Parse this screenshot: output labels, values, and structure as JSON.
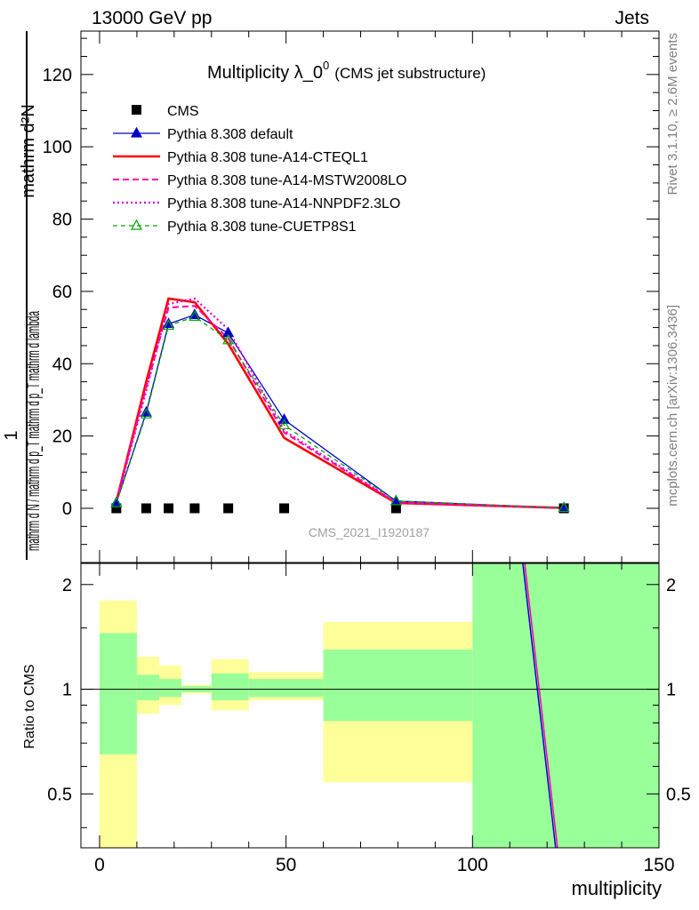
{
  "header": {
    "energy": "13000 GeV pp",
    "category": "Jets"
  },
  "side_labels": {
    "rivet": "Rivet 3.1.10, ≥ 2.6M events",
    "mcplots": "mcplots.cern.ch [arXiv:1306.3436]"
  },
  "chart_data": {
    "type": "line",
    "title": "Multiplicity λ_0",
    "title_superscript": "0",
    "title_note": "(CMS jet substructure)",
    "watermark": "CMS_2021_I1920187",
    "ylabel_main_top": "mathrm d²N",
    "ylabel_main_bottom": "mathrm d N / mathrm d p_T mathrm d p_T mathrm d lambda",
    "ylabel_main_prefix": "1",
    "ylabel_ratio": "Ratio to CMS",
    "xlabel": "multiplicity",
    "xlim": [
      -5,
      150
    ],
    "ylim_main": [
      -15,
      132
    ],
    "ylim_ratio": [
      0.35,
      2.3
    ],
    "x_ticks": [
      0,
      50,
      100,
      150
    ],
    "y_ticks_main": [
      0,
      20,
      40,
      60,
      80,
      100,
      120
    ],
    "y_ticks_ratio": [
      0.5,
      1,
      2
    ],
    "x": [
      4.5,
      12.5,
      18.5,
      25.5,
      34.5,
      49.5,
      79.5,
      124.5
    ],
    "series": [
      {
        "name": "CMS",
        "style": "data",
        "color": "#000000",
        "marker": "square",
        "values": [
          0,
          0,
          0,
          0,
          0,
          0,
          0,
          0
        ]
      },
      {
        "name": "Pythia 8.308 default",
        "color": "#0000cc",
        "dash": "none",
        "width": 1.3,
        "marker": "triangle-filled",
        "values": [
          1.5,
          26.5,
          51.0,
          53.5,
          48.5,
          24.5,
          2.0,
          0.1
        ]
      },
      {
        "name": "Pythia 8.308 tune-A14-CTEQL1",
        "color": "#ff0000",
        "dash": "none",
        "width": 2.6,
        "marker": "none",
        "values": [
          1.8,
          35.0,
          58.0,
          57.0,
          45.5,
          19.5,
          1.5,
          0.1
        ]
      },
      {
        "name": "Pythia 8.308 tune-A14-MSTW2008LO",
        "color": "#ff00aa",
        "dash": "7,4",
        "width": 2.0,
        "marker": "none",
        "values": [
          1.7,
          33.5,
          55.5,
          56.0,
          47.0,
          21.0,
          1.6,
          0.1
        ]
      },
      {
        "name": "Pythia 8.308 tune-A14-NNPDF2.3LO",
        "color": "#dd00dd",
        "dash": "2,3",
        "width": 2.2,
        "marker": "none",
        "values": [
          1.6,
          32.5,
          56.5,
          58.0,
          49.5,
          21.5,
          1.7,
          0.1
        ]
      },
      {
        "name": "Pythia 8.308 tune-CUETP8S1",
        "color": "#00aa00",
        "dash": "5,4",
        "width": 1.3,
        "marker": "triangle-open",
        "values": [
          1.4,
          26.0,
          50.5,
          53.0,
          46.5,
          23.0,
          2.0,
          0.1
        ]
      }
    ],
    "ratio_bands": [
      {
        "x_range": [
          0,
          10
        ],
        "yellow": [
          0.35,
          1.8
        ],
        "green": [
          0.65,
          1.45
        ]
      },
      {
        "x_range": [
          10,
          16
        ],
        "yellow": [
          0.85,
          1.24
        ],
        "green": [
          0.93,
          1.1
        ]
      },
      {
        "x_range": [
          16,
          22
        ],
        "yellow": [
          0.9,
          1.17
        ],
        "green": [
          0.95,
          1.07
        ]
      },
      {
        "x_range": [
          22,
          30
        ],
        "yellow": [
          0.97,
          1.03
        ],
        "green": [
          0.98,
          1.02
        ]
      },
      {
        "x_range": [
          30,
          40
        ],
        "yellow": [
          0.87,
          1.22
        ],
        "green": [
          0.93,
          1.11
        ]
      },
      {
        "x_range": [
          40,
          60
        ],
        "yellow": [
          0.93,
          1.12
        ],
        "green": [
          0.95,
          1.07
        ]
      },
      {
        "x_range": [
          60,
          100
        ],
        "yellow": [
          0.54,
          1.56
        ],
        "green": [
          0.81,
          1.3
        ]
      },
      {
        "x_range": [
          100,
          150
        ],
        "yellow": [
          0.35,
          2.3
        ],
        "green": [
          0.35,
          2.3
        ]
      }
    ],
    "ratio_lines": [
      {
        "color": "#0000cc",
        "points": [
          [
            113.5,
            2.3
          ],
          [
            122.3,
            0.35
          ]
        ]
      },
      {
        "color": "#ff00aa",
        "points": [
          [
            114.0,
            2.3
          ],
          [
            122.8,
            0.35
          ]
        ]
      }
    ],
    "grid": false,
    "legend_position": "top-left"
  }
}
